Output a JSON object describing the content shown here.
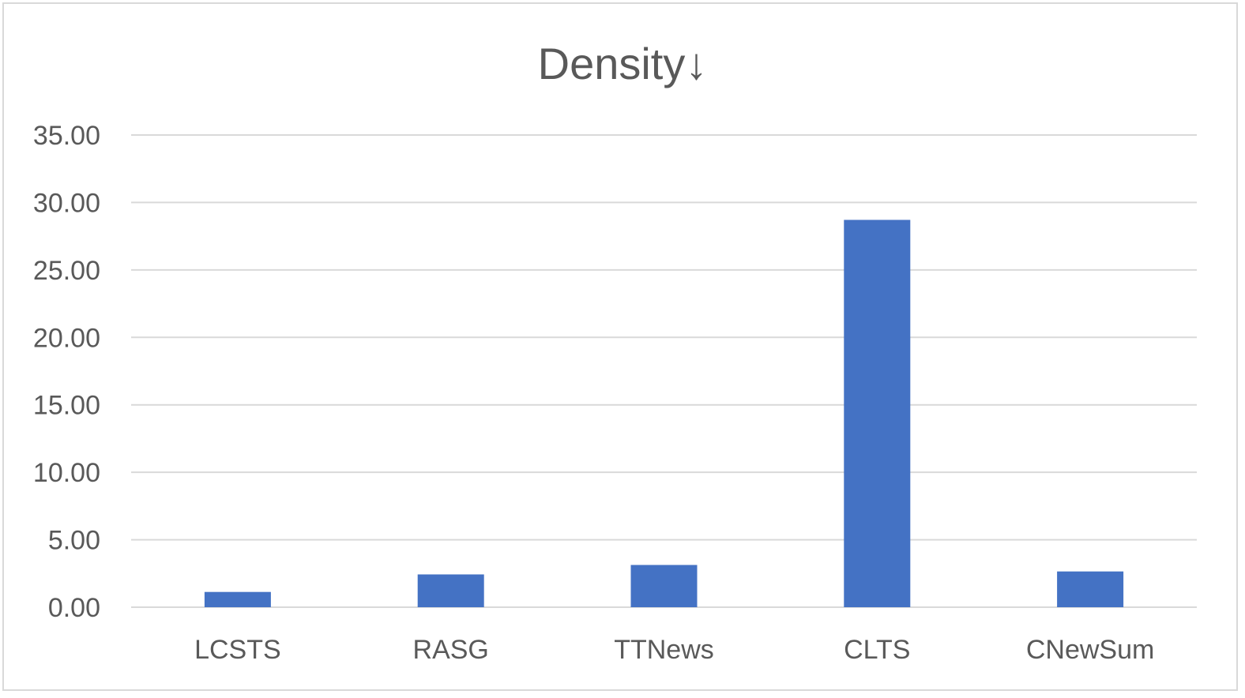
{
  "chart_data": {
    "type": "bar",
    "title": "Density↓",
    "categories": [
      "LCSTS",
      "RASG",
      "TTNews",
      "CLTS",
      "CNewSum"
    ],
    "values": [
      1.13,
      2.43,
      3.13,
      28.71,
      2.65
    ],
    "ylim": [
      0,
      35
    ],
    "yticks": [
      "0.00",
      "5.00",
      "10.00",
      "15.00",
      "20.00",
      "25.00",
      "30.00",
      "35.00"
    ],
    "ytick_values": [
      0,
      5,
      10,
      15,
      20,
      25,
      30,
      35
    ],
    "grid": true,
    "legend": "none",
    "bar_color": "#4472c4"
  }
}
